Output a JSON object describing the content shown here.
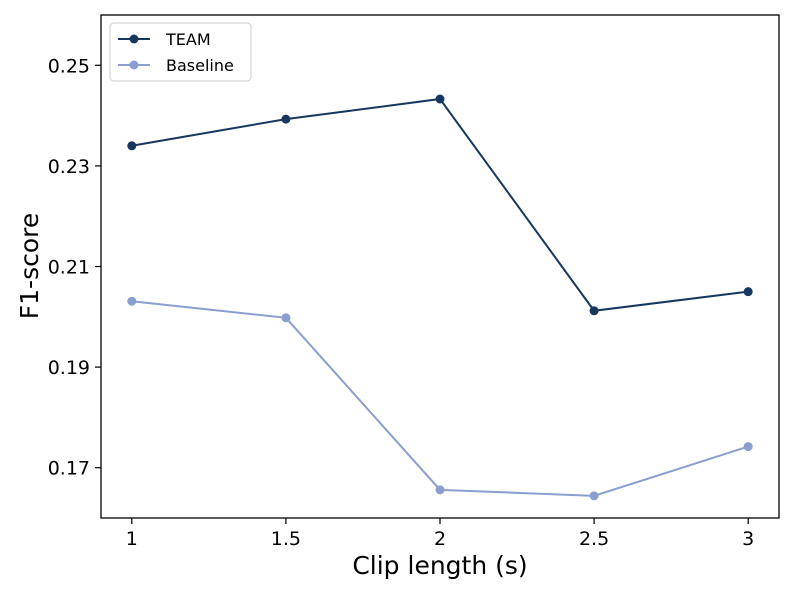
{
  "chart_data": {
    "type": "line",
    "xlabel": "Clip length (s)",
    "ylabel": "F1-score",
    "x": [
      1,
      1.5,
      2,
      2.5,
      3
    ],
    "x_tick_labels": [
      "1",
      "1.5",
      "2",
      "2.5",
      "3"
    ],
    "y_ticks": [
      0.17,
      0.19,
      0.21,
      0.23,
      0.25
    ],
    "y_tick_labels": [
      "0.17",
      "0.19",
      "0.21",
      "0.23",
      "0.25"
    ],
    "xlim": [
      0.9,
      3.1
    ],
    "ylim": [
      0.16,
      0.26
    ],
    "grid": false,
    "legend_position": "upper-left",
    "series": [
      {
        "name": "TEAM",
        "color": "#17375e",
        "values": [
          0.234,
          0.2393,
          0.2433,
          0.2012,
          0.205
        ]
      },
      {
        "name": "Baseline",
        "color": "#8a9fcf",
        "values": [
          0.2031,
          0.1998,
          0.1656,
          0.1644,
          0.1742
        ]
      }
    ]
  }
}
